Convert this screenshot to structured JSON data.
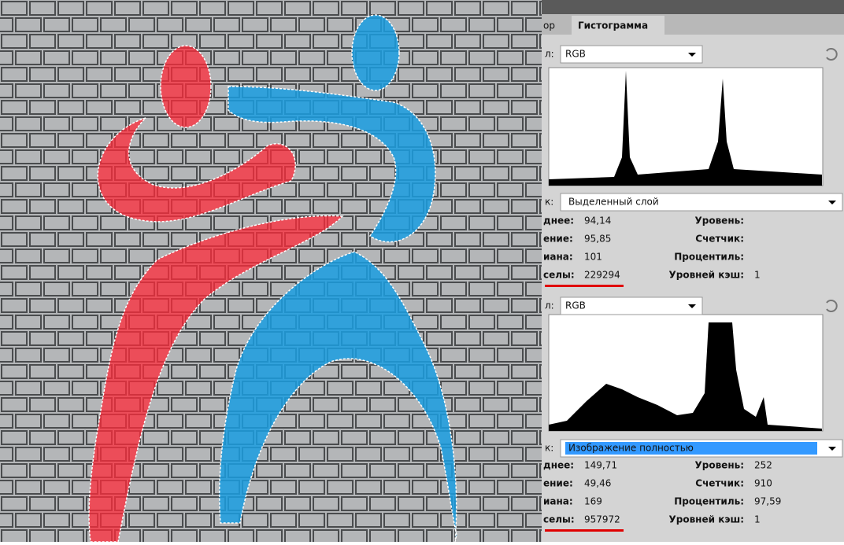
{
  "tabs": [
    "ор",
    "Гистограмма"
  ],
  "panel1": {
    "channel_label": "л:",
    "channel": "RGB",
    "source_label": "к:",
    "source": "Выделенный слой",
    "stats": [
      {
        "label": "днее:",
        "value": "94,14"
      },
      {
        "label": "ение:",
        "value": "95,85"
      },
      {
        "label": "иана:",
        "value": "101"
      },
      {
        "label": "селы:",
        "value": "229294"
      }
    ],
    "right_stats": [
      {
        "label": "Уровень:"
      },
      {
        "label": "Счетчик:"
      },
      {
        "label": "Процентиль:"
      },
      {
        "label": "Уровней кэш:",
        "value": "1"
      }
    ]
  },
  "panel2": {
    "channel_label": "л:",
    "channel": "RGB",
    "source_label": "к:",
    "source": "Изображение полностью",
    "stats": [
      {
        "label": "днее:",
        "value": "149,71"
      },
      {
        "label": "ение:",
        "value": "49,46"
      },
      {
        "label": "иана:",
        "value": "169"
      },
      {
        "label": "селы:",
        "value": "957972"
      }
    ],
    "right_stats": [
      {
        "label": "Уровень:",
        "value": "252"
      },
      {
        "label": "Счетчик:",
        "value": "910"
      },
      {
        "label": "Процентиль:",
        "value": "97,59"
      },
      {
        "label": "Уровней кэш:",
        "value": "1"
      }
    ]
  }
}
